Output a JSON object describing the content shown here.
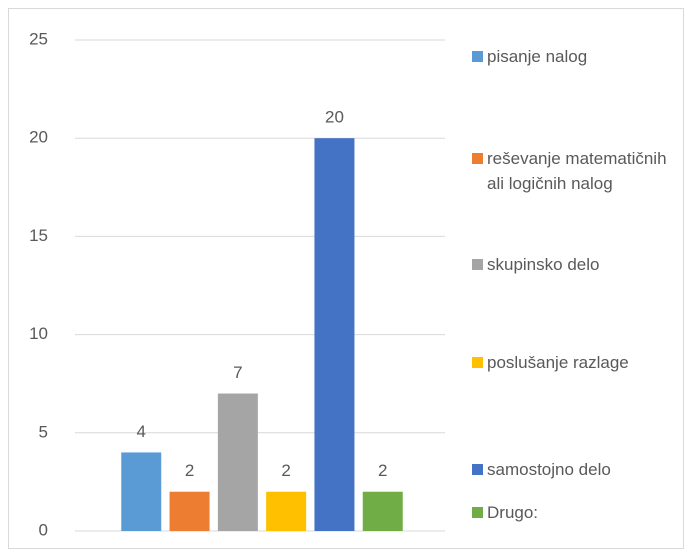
{
  "chart_data": {
    "type": "bar",
    "series": [
      {
        "name": "pisanje nalog",
        "color": "#5b9bd5",
        "values": [
          4
        ]
      },
      {
        "name": "reševanje matematičnih ali logičnih nalog",
        "color": "#ed7d31",
        "values": [
          2
        ]
      },
      {
        "name": "skupinsko delo",
        "color": "#a5a5a5",
        "values": [
          7
        ]
      },
      {
        "name": "poslušanje razlage",
        "color": "#ffc000",
        "values": [
          2
        ]
      },
      {
        "name": "samostojno delo",
        "color": "#4472c4",
        "values": [
          20
        ]
      },
      {
        "name": "Drugo:",
        "color": "#70ad47",
        "values": [
          2
        ]
      }
    ],
    "ylim": [
      0,
      25
    ],
    "yticks": [
      0,
      5,
      10,
      15,
      20,
      25
    ],
    "grid": true,
    "legend": "right"
  }
}
